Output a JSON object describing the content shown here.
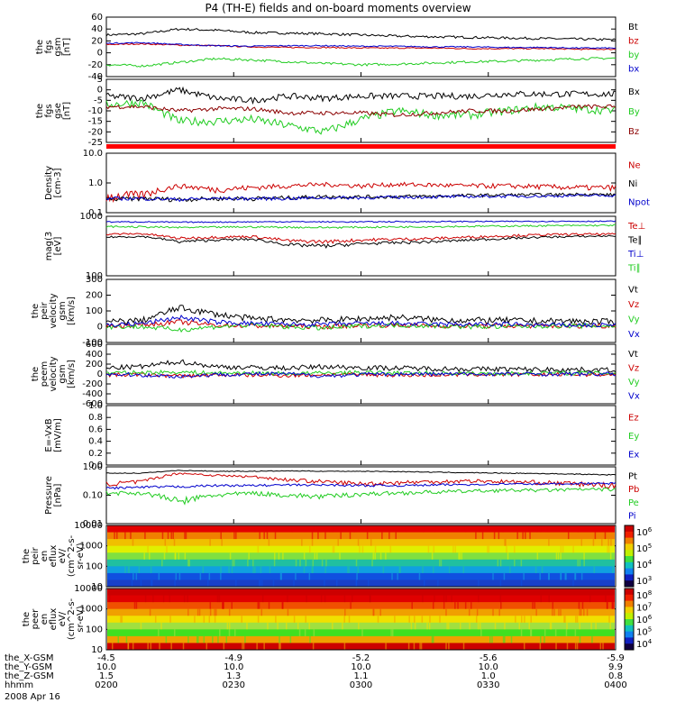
{
  "title": "P4 (TH-E) fields and on-board moments overview",
  "colors": {
    "black": "#000000",
    "red": "#cc0000",
    "green": "#22cc22",
    "blue": "#0000cc",
    "dkred": "#8b0000"
  },
  "chart_data": [
    {
      "id": "fgs_gsm",
      "type": "line",
      "ylabel": [
        "the",
        "fgs",
        "gsm",
        "[nT]"
      ],
      "ylim": [
        -40,
        60
      ],
      "yticks": [
        "60",
        "40",
        "20",
        "0",
        "-20",
        "-40"
      ],
      "legend": [
        "Bt",
        "bz",
        "by",
        "bx"
      ],
      "series": [
        {
          "name": "Bt",
          "color": "black",
          "base": [
            30,
            32,
            40,
            38,
            34,
            33,
            32,
            30,
            28,
            27,
            26,
            25,
            24,
            23,
            22
          ],
          "noise": 2
        },
        {
          "name": "bz",
          "color": "red",
          "base": [
            14,
            15,
            13,
            12,
            10,
            9,
            9,
            8,
            8,
            8,
            7,
            7,
            7,
            6,
            6
          ],
          "noise": 1
        },
        {
          "name": "by",
          "color": "green",
          "base": [
            -20,
            -22,
            -16,
            -10,
            -12,
            -15,
            -18,
            -20,
            -19,
            -17,
            -15,
            -14,
            -12,
            -10,
            -9
          ],
          "noise": 2
        },
        {
          "name": "bx",
          "color": "blue",
          "base": [
            16,
            17,
            14,
            12,
            11,
            12,
            12,
            11,
            11,
            10,
            10,
            9,
            9,
            8,
            8
          ],
          "noise": 1
        }
      ]
    },
    {
      "id": "fgs_gse",
      "type": "line",
      "ylabel": [
        "the",
        "fgs",
        "gse",
        "[nT]"
      ],
      "ylim": [
        -25,
        5
      ],
      "yticks": [
        "5",
        "0",
        "-5",
        "-10",
        "-15",
        "-20",
        "-25"
      ],
      "legend": [
        "Bx",
        "By",
        "Bz"
      ],
      "series": [
        {
          "name": "Bx",
          "color": "black",
          "base": [
            -3,
            -4,
            0,
            -4,
            -5,
            -3,
            -4,
            -3,
            -3,
            -3,
            -3,
            -2,
            -2,
            -2,
            -2
          ],
          "noise": 1.5
        },
        {
          "name": "By",
          "color": "green",
          "base": [
            -7,
            -6,
            -15,
            -15,
            -14,
            -17,
            -20,
            -14,
            -10,
            -12,
            -12,
            -10,
            -8,
            -9,
            -10
          ],
          "noise": 2
        },
        {
          "name": "Bz",
          "color": "dkred",
          "base": [
            -8,
            -8,
            -10,
            -9,
            -9,
            -11,
            -11,
            -11,
            -12,
            -11,
            -10,
            -10,
            -9,
            -8,
            -8
          ],
          "noise": 1
        }
      ]
    },
    {
      "id": "density",
      "type": "line",
      "log": true,
      "ylabel": [
        "Density",
        "[cm-3]"
      ],
      "ylim": [
        0.1,
        10
      ],
      "yticks": [
        "10.0",
        "1.0",
        "0.1"
      ],
      "legend": [
        "Ne",
        "Ni",
        "Npot"
      ],
      "series": [
        {
          "name": "Ne",
          "color": "red",
          "base": [
            0.35,
            0.4,
            0.8,
            0.6,
            0.7,
            0.8,
            0.9,
            0.8,
            0.9,
            0.85,
            0.8,
            0.8,
            0.75,
            0.7,
            0.7
          ],
          "noise": 0.15
        },
        {
          "name": "Ni",
          "color": "black",
          "base": [
            0.28,
            0.3,
            0.28,
            0.3,
            0.3,
            0.32,
            0.35,
            0.34,
            0.35,
            0.36,
            0.38,
            0.4,
            0.4,
            0.42,
            0.4
          ],
          "noise": 0.05
        },
        {
          "name": "Npot",
          "color": "blue",
          "base": [
            0.3,
            0.3,
            0.28,
            0.3,
            0.3,
            0.3,
            0.32,
            0.32,
            0.33,
            0.34,
            0.35,
            0.36,
            0.36,
            0.38,
            0.38
          ],
          "noise": 0.04
        }
      ]
    },
    {
      "id": "temp",
      "type": "line",
      "log": true,
      "ylabel": [
        "mag(3",
        "[eV]"
      ],
      "ylim": [
        100,
        10000
      ],
      "yticks": [
        "1000",
        "100"
      ],
      "legend": [
        "Te⊥",
        "Te∥",
        "Ti⊥",
        "Ti∥"
      ],
      "series": [
        {
          "name": "Te⊥",
          "color": "red",
          "base": [
            2500,
            2600,
            1800,
            2000,
            2100,
            1500,
            1400,
            1600,
            1700,
            1800,
            2000,
            2200,
            2400,
            2500,
            2500
          ],
          "noise": 200
        },
        {
          "name": "Te∥",
          "color": "black",
          "base": [
            2000,
            2100,
            1400,
            1600,
            1700,
            1100,
            1000,
            1200,
            1300,
            1400,
            1600,
            1800,
            2000,
            2100,
            2200
          ],
          "noise": 150
        },
        {
          "name": "Ti⊥",
          "color": "blue",
          "base": [
            6500,
            6500,
            6300,
            6400,
            6500,
            6600,
            6500,
            6500,
            6600,
            6600,
            6700,
            6700,
            6800,
            6800,
            6800
          ],
          "noise": 300
        },
        {
          "name": "Ti∥",
          "color": "green",
          "base": [
            4500,
            4400,
            4200,
            4300,
            4400,
            4300,
            4200,
            4300,
            4400,
            4500,
            4600,
            4700,
            4800,
            4900,
            5000
          ],
          "noise": 300
        }
      ]
    },
    {
      "id": "peir_vel",
      "type": "line",
      "ylabel": [
        "the",
        "peir",
        "velocity",
        "gsm",
        "[km/s]"
      ],
      "ylim": [
        -100,
        300
      ],
      "yticks": [
        "300",
        "200",
        "100",
        "0",
        "-100"
      ],
      "legend": [
        "Vt",
        "Vz",
        "Vy",
        "Vx"
      ],
      "series": [
        {
          "name": "Vt",
          "color": "black",
          "base": [
            30,
            40,
            120,
            80,
            50,
            45,
            40,
            50,
            60,
            45,
            40,
            40,
            35,
            35,
            30
          ],
          "noise": 20
        },
        {
          "name": "Vz",
          "color": "red",
          "base": [
            5,
            10,
            30,
            10,
            5,
            5,
            0,
            10,
            10,
            5,
            5,
            5,
            5,
            5,
            5
          ],
          "noise": 15
        },
        {
          "name": "Vy",
          "color": "green",
          "base": [
            0,
            0,
            -20,
            0,
            10,
            0,
            -10,
            5,
            10,
            5,
            0,
            0,
            5,
            5,
            5
          ],
          "noise": 15
        },
        {
          "name": "Vx",
          "color": "blue",
          "base": [
            10,
            20,
            60,
            30,
            20,
            15,
            15,
            20,
            20,
            15,
            15,
            15,
            10,
            10,
            10
          ],
          "noise": 15
        }
      ]
    },
    {
      "id": "peem_vel",
      "type": "line",
      "ylabel": [
        "the",
        "peem",
        "velocity",
        "gsm",
        "[km/s]"
      ],
      "ylim": [
        -600,
        600
      ],
      "yticks": [
        "600",
        "400",
        "200",
        "0",
        "-200",
        "-400",
        "-600"
      ],
      "legend": [
        "Vt",
        "Vz",
        "Vy",
        "Vx"
      ],
      "series": [
        {
          "name": "Vt",
          "color": "black",
          "base": [
            120,
            150,
            250,
            150,
            130,
            120,
            150,
            130,
            120,
            110,
            100,
            100,
            90,
            90,
            80
          ],
          "noise": 50
        },
        {
          "name": "Vz",
          "color": "red",
          "base": [
            -20,
            -10,
            -40,
            -20,
            -20,
            -30,
            -10,
            -10,
            -20,
            -20,
            -10,
            -10,
            -10,
            -10,
            -10
          ],
          "noise": 40
        },
        {
          "name": "Vy",
          "color": "green",
          "base": [
            20,
            30,
            40,
            20,
            20,
            10,
            20,
            30,
            20,
            20,
            10,
            10,
            20,
            20,
            20
          ],
          "noise": 40
        },
        {
          "name": "Vx",
          "color": "blue",
          "base": [
            0,
            -20,
            -50,
            -10,
            0,
            0,
            -40,
            -10,
            0,
            0,
            0,
            0,
            0,
            0,
            0
          ],
          "noise": 40
        }
      ]
    },
    {
      "id": "efield",
      "type": "line",
      "ylabel": [
        "E=-VxB",
        "[mV/m]"
      ],
      "ylim": [
        0,
        1
      ],
      "yticks": [
        "1.0",
        "0.8",
        "0.6",
        "0.4",
        "0.2",
        "0.0"
      ],
      "legend": [
        "Ez",
        "Ey",
        "Ex"
      ],
      "series": []
    },
    {
      "id": "pressure",
      "type": "line",
      "log": true,
      "ylabel": [
        "Pressure",
        "[nPa]"
      ],
      "ylim": [
        0.01,
        1
      ],
      "yticks": [
        "1.00",
        "0.10",
        "0.01"
      ],
      "legend": [
        "Pt",
        "Pb",
        "Pe",
        "Pi"
      ],
      "series": [
        {
          "name": "Pt",
          "color": "black",
          "base": [
            0.6,
            0.6,
            0.75,
            0.7,
            0.7,
            0.72,
            0.7,
            0.7,
            0.68,
            0.65,
            0.62,
            0.6,
            0.58,
            0.55,
            0.52
          ],
          "noise": 0.02
        },
        {
          "name": "Pb",
          "color": "red",
          "base": [
            0.25,
            0.3,
            0.6,
            0.5,
            0.45,
            0.35,
            0.3,
            0.25,
            0.28,
            0.3,
            0.32,
            0.3,
            0.28,
            0.25,
            0.22
          ],
          "noise": 0.05
        },
        {
          "name": "Pe",
          "color": "green",
          "base": [
            0.12,
            0.12,
            0.06,
            0.1,
            0.12,
            0.1,
            0.09,
            0.11,
            0.12,
            0.13,
            0.14,
            0.15,
            0.15,
            0.16,
            0.16
          ],
          "noise": 0.02
        },
        {
          "name": "Pi",
          "color": "blue",
          "base": [
            0.18,
            0.19,
            0.2,
            0.22,
            0.22,
            0.23,
            0.23,
            0.22,
            0.22,
            0.23,
            0.24,
            0.25,
            0.25,
            0.26,
            0.26
          ],
          "noise": 0.02
        }
      ]
    },
    {
      "id": "peir_eflux",
      "type": "heatmap",
      "ylabel": [
        "the",
        "peir",
        "en",
        "eflux",
        "eV/",
        "(cm^2-s-",
        "sr-eV)"
      ],
      "yticks": [
        "10000",
        "1000",
        "100",
        "10"
      ],
      "colorbar": {
        "ticks": [
          "10^6",
          "10^5",
          "10^4",
          "10^3"
        ]
      }
    },
    {
      "id": "peer_eflux",
      "type": "heatmap",
      "ylabel": [
        "the",
        "peer",
        "en",
        "eflux",
        "eV/",
        "(cm^2-s-",
        "sr-eV)"
      ],
      "yticks": [
        "10000",
        "1000",
        "100",
        "10"
      ],
      "colorbar": {
        "ticks": [
          "10^8",
          "10^7",
          "10^6",
          "10^5",
          "10^4"
        ]
      }
    }
  ],
  "xaxis": {
    "rows": [
      {
        "label": "the_X-GSM",
        "values": [
          "-4.5",
          "-4.9",
          "-5.2",
          "-5.6",
          "-5.9"
        ]
      },
      {
        "label": "the_Y-GSM",
        "values": [
          "10.0",
          "10.0",
          "10.0",
          "10.0",
          "9.9"
        ]
      },
      {
        "label": "the_Z-GSM",
        "values": [
          "1.5",
          "1.3",
          "1.1",
          "1.0",
          "0.8"
        ]
      },
      {
        "label": "hhmm",
        "values": [
          "0200",
          "0230",
          "0300",
          "0330",
          "0400"
        ]
      }
    ],
    "date": "2008 Apr 16"
  }
}
